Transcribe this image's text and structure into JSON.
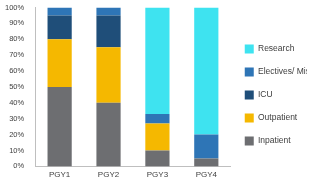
{
  "chart_data": {
    "type": "bar",
    "stacked": true,
    "grid": false,
    "legend": "right",
    "categories": [
      "PGY1",
      "PGY2",
      "PGY3",
      "PGY4"
    ],
    "series": [
      {
        "name": "Inpatient",
        "color": "#6d6e71",
        "values": [
          50,
          40,
          10,
          5
        ]
      },
      {
        "name": "Outpatient",
        "color": "#f5b800",
        "values": [
          30,
          35,
          17,
          0
        ]
      },
      {
        "name": "ICU",
        "color": "#1f4e79",
        "values": [
          15,
          20,
          0,
          0
        ]
      },
      {
        "name": "Electives/ Miscellaneous",
        "color": "#2e75b6",
        "values": [
          5,
          5,
          6,
          15
        ]
      },
      {
        "name": "Research",
        "color": "#3ee3f0",
        "values": [
          0,
          0,
          67,
          80
        ]
      }
    ],
    "ylim": [
      0,
      100
    ],
    "yticks": [
      {
        "value": 0,
        "label": "0%"
      },
      {
        "value": 10,
        "label": "10%"
      },
      {
        "value": 20,
        "label": "20%"
      },
      {
        "value": 30,
        "label": "30%"
      },
      {
        "value": 40,
        "label": "40%"
      },
      {
        "value": 50,
        "label": "50%"
      },
      {
        "value": 60,
        "label": "60%"
      },
      {
        "value": 70,
        "label": "70%"
      },
      {
        "value": 80,
        "label": "80%"
      },
      {
        "value": 90,
        "label": "90%"
      },
      {
        "value": 100,
        "label": "100%"
      }
    ]
  }
}
